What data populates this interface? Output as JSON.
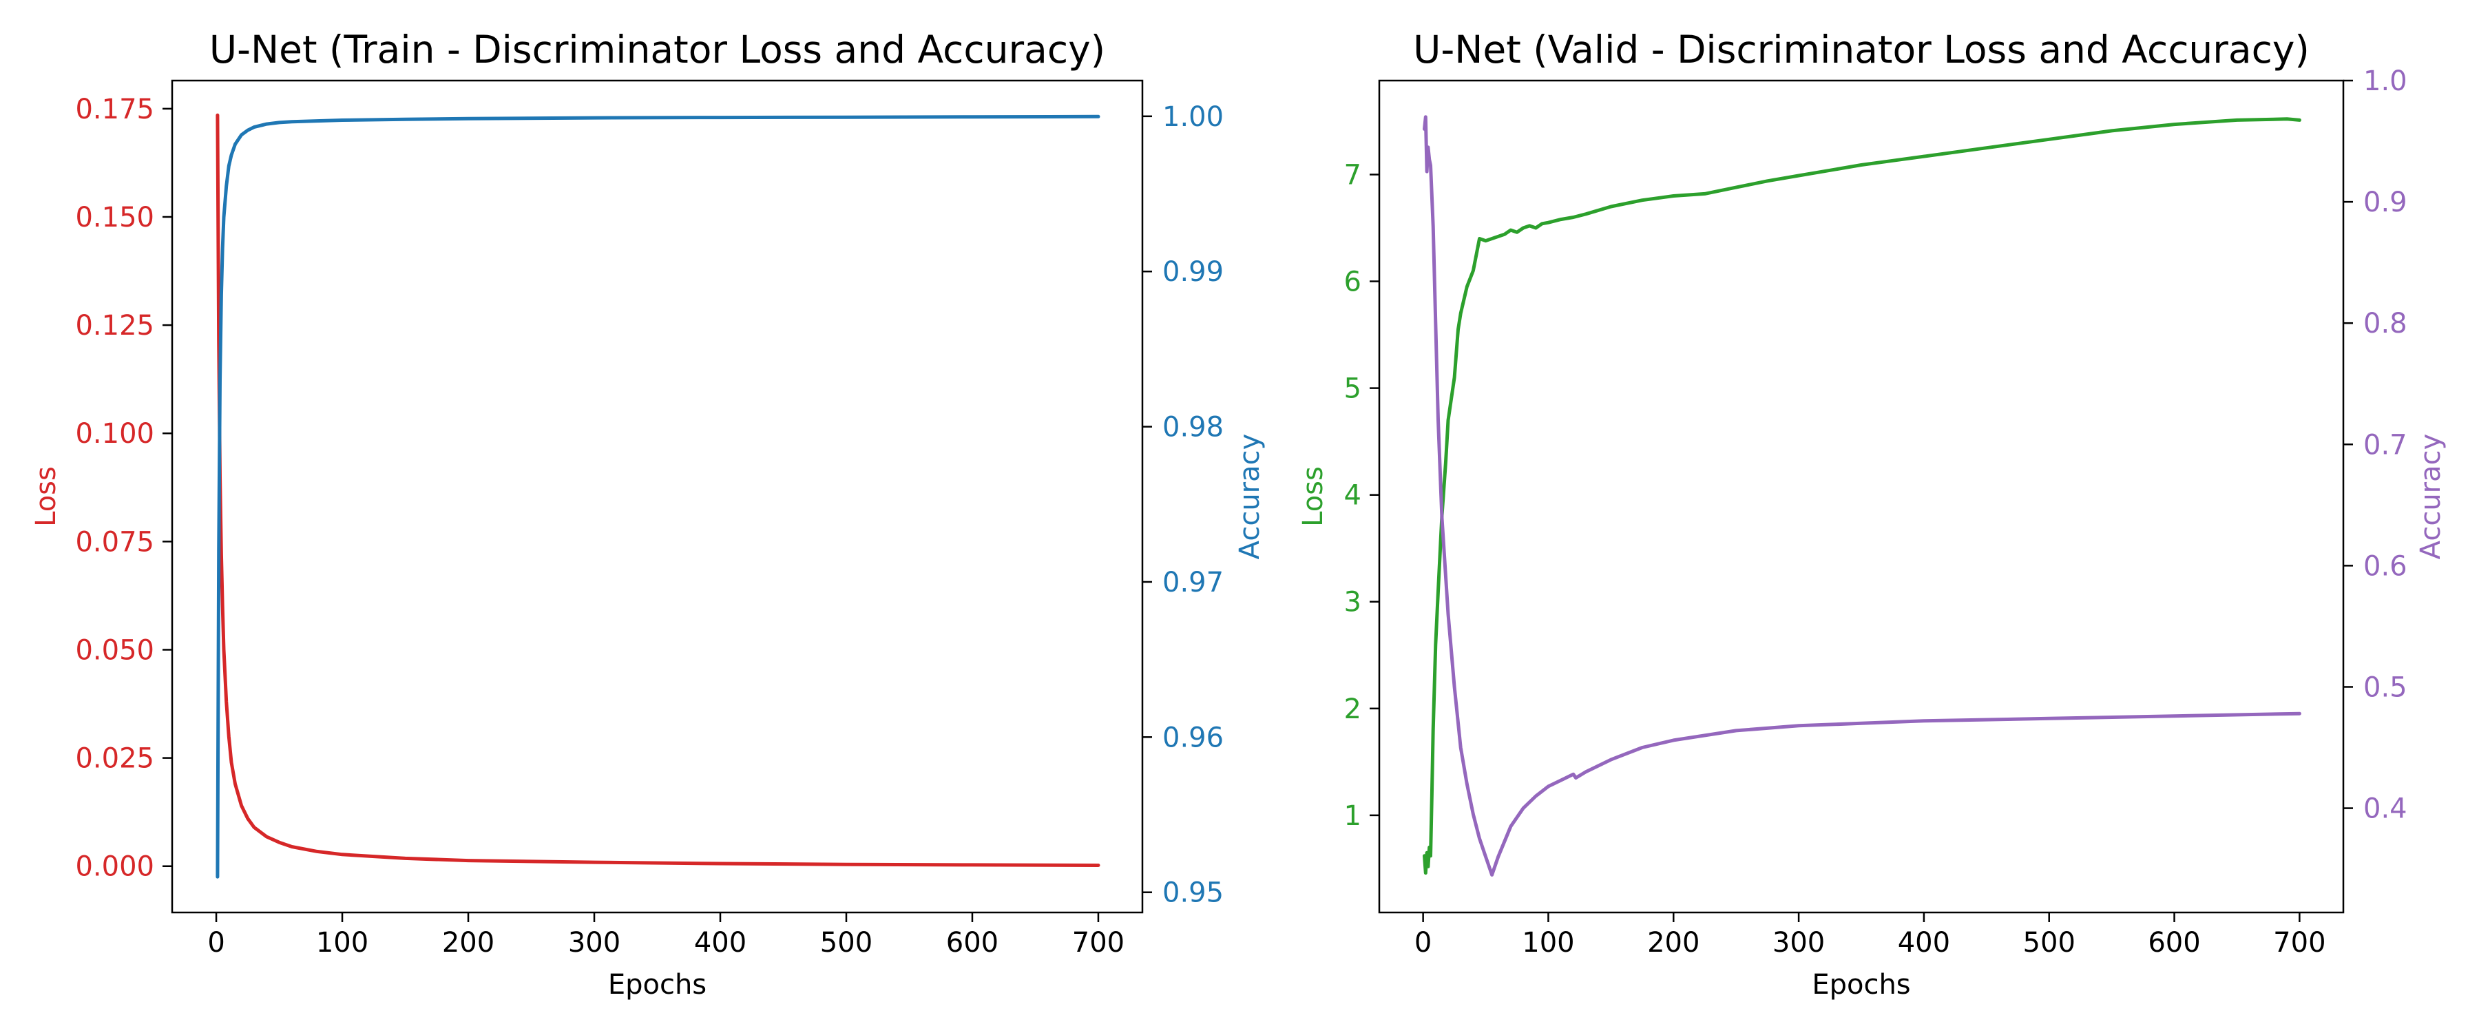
{
  "chart_data": [
    {
      "type": "line",
      "title": "U-Net (Train - Discriminator Loss and Accuracy)",
      "xlabel": "Epochs",
      "xlim": [
        -35,
        735
      ],
      "xticks": [
        0,
        100,
        200,
        300,
        400,
        500,
        600,
        700
      ],
      "left_axis": {
        "label": "Loss",
        "color": "#d62728",
        "ylim": [
          -0.0107,
          0.1815
        ],
        "ticks": [
          0.0,
          0.025,
          0.05,
          0.075,
          0.1,
          0.125,
          0.15,
          0.175
        ],
        "tick_decimals": 3
      },
      "right_axis": {
        "label": "Accuracy",
        "color": "#1f77b4",
        "ylim": [
          0.9487,
          1.0023
        ],
        "ticks": [
          0.95,
          0.96,
          0.97,
          0.98,
          0.99,
          1.0
        ],
        "tick_decimals": 2
      },
      "series": [
        {
          "axis": "left",
          "color": "#d62728",
          "x": [
            1,
            2,
            3,
            4,
            5,
            6,
            8,
            10,
            12,
            15,
            20,
            25,
            30,
            40,
            50,
            60,
            80,
            100,
            150,
            200,
            300,
            400,
            500,
            600,
            700
          ],
          "y": [
            0.1735,
            0.121,
            0.09,
            0.072,
            0.06,
            0.05,
            0.038,
            0.03,
            0.024,
            0.019,
            0.014,
            0.011,
            0.009,
            0.0068,
            0.0055,
            0.0045,
            0.0034,
            0.0027,
            0.0018,
            0.0013,
            0.0009,
            0.0006,
            0.0004,
            0.0003,
            0.0002
          ]
        },
        {
          "axis": "right",
          "color": "#1f77b4",
          "x": [
            1,
            2,
            3,
            4,
            5,
            6,
            8,
            10,
            12,
            15,
            20,
            25,
            30,
            40,
            50,
            60,
            80,
            100,
            150,
            200,
            300,
            400,
            500,
            600,
            700
          ],
          "y": [
            0.951,
            0.972,
            0.983,
            0.9885,
            0.9915,
            0.9935,
            0.9955,
            0.9968,
            0.9975,
            0.9982,
            0.9988,
            0.9991,
            0.9993,
            0.9995,
            0.9996,
            0.99965,
            0.9997,
            0.99975,
            0.9998,
            0.99985,
            0.9999,
            0.99992,
            0.99994,
            0.99996,
            0.99998
          ]
        }
      ]
    },
    {
      "type": "line",
      "title": "U-Net (Valid - Discriminator Loss and Accuracy)",
      "xlabel": "Epochs",
      "xlim": [
        -35,
        735
      ],
      "xticks": [
        0,
        100,
        200,
        300,
        400,
        500,
        600,
        700
      ],
      "left_axis": {
        "label": "Loss",
        "color": "#2ca02c",
        "ylim": [
          0.09,
          7.88
        ],
        "ticks": [
          1,
          2,
          3,
          4,
          5,
          6,
          7
        ],
        "tick_decimals": 0
      },
      "right_axis": {
        "label": "Accuracy",
        "color": "#9467bd",
        "ylim": [
          0.314,
          1.0
        ],
        "ticks": [
          0.4,
          0.5,
          0.6,
          0.7,
          0.8,
          0.9,
          1.0
        ],
        "tick_decimals": 1
      },
      "series": [
        {
          "axis": "left",
          "color": "#2ca02c",
          "x": [
            1,
            2,
            3,
            4,
            5,
            6,
            7,
            8,
            10,
            12,
            15,
            18,
            20,
            25,
            28,
            30,
            35,
            40,
            45,
            50,
            55,
            60,
            65,
            70,
            75,
            80,
            85,
            90,
            95,
            100,
            110,
            120,
            130,
            150,
            175,
            200,
            225,
            250,
            275,
            300,
            325,
            350,
            375,
            400,
            450,
            500,
            550,
            600,
            650,
            690,
            700
          ],
          "y": [
            0.62,
            0.46,
            0.65,
            0.52,
            0.7,
            0.62,
            1.2,
            1.8,
            2.6,
            3.1,
            3.8,
            4.3,
            4.7,
            5.1,
            5.55,
            5.7,
            5.95,
            6.1,
            6.4,
            6.38,
            6.4,
            6.42,
            6.44,
            6.48,
            6.46,
            6.5,
            6.52,
            6.5,
            6.54,
            6.55,
            6.58,
            6.6,
            6.63,
            6.7,
            6.76,
            6.8,
            6.82,
            6.88,
            6.94,
            6.99,
            7.04,
            7.09,
            7.13,
            7.17,
            7.25,
            7.33,
            7.41,
            7.47,
            7.51,
            7.52,
            7.51
          ]
        },
        {
          "axis": "right",
          "color": "#9467bd",
          "x": [
            1,
            2,
            3,
            4,
            5,
            6,
            8,
            10,
            12,
            15,
            20,
            25,
            30,
            35,
            40,
            45,
            50,
            55,
            60,
            70,
            80,
            90,
            100,
            110,
            120,
            122,
            130,
            150,
            175,
            200,
            250,
            300,
            350,
            400,
            500,
            600,
            700
          ],
          "y": [
            0.96,
            0.97,
            0.925,
            0.945,
            0.935,
            0.93,
            0.88,
            0.8,
            0.72,
            0.64,
            0.56,
            0.5,
            0.45,
            0.42,
            0.395,
            0.375,
            0.36,
            0.345,
            0.36,
            0.385,
            0.4,
            0.41,
            0.418,
            0.423,
            0.428,
            0.425,
            0.43,
            0.44,
            0.45,
            0.456,
            0.464,
            0.468,
            0.47,
            0.472,
            0.474,
            0.476,
            0.478
          ]
        }
      ]
    }
  ]
}
